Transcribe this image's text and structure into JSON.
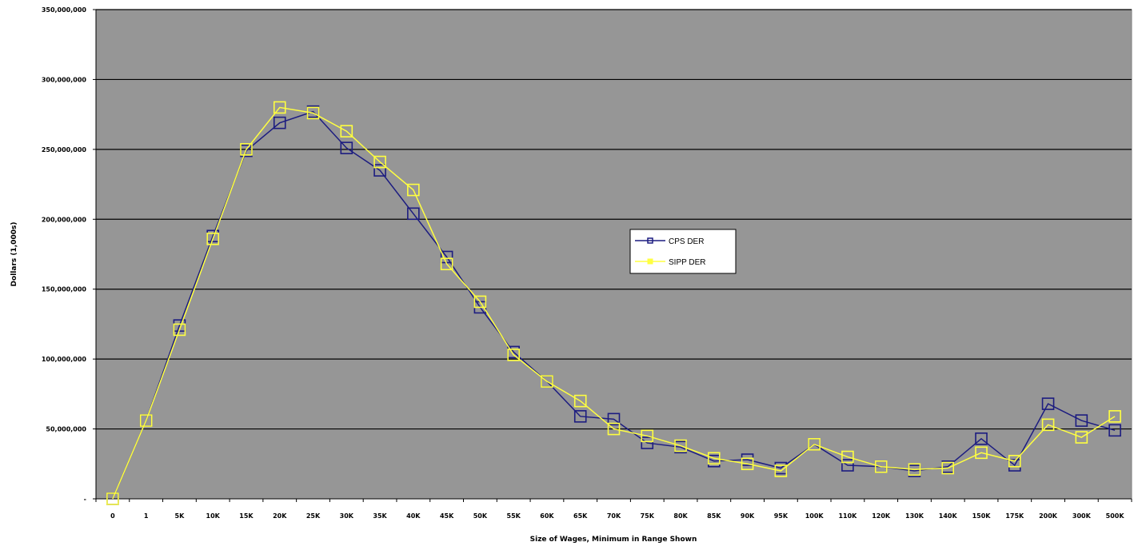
{
  "chart_data": {
    "type": "line",
    "title": "",
    "xlabel": "Size of Wages, Minimum in Range Shown",
    "ylabel": "Dollars (1,000s)",
    "ylim": [
      0,
      350000000
    ],
    "yticks": [
      0,
      50000000,
      100000000,
      150000000,
      200000000,
      250000000,
      300000000,
      350000000
    ],
    "ytick_labels": [
      "-",
      "50,000,000",
      "100,000,000",
      "150,000,000",
      "200,000,000",
      "250,000,000",
      "300,000,000",
      "350,000,000"
    ],
    "grid": true,
    "legend_position": "center-right",
    "categories": [
      "0",
      "1",
      "5K",
      "10K",
      "15K",
      "20K",
      "25K",
      "30K",
      "35K",
      "40K",
      "45K",
      "50K",
      "55K",
      "60K",
      "65K",
      "70K",
      "75K",
      "80K",
      "85K",
      "90K",
      "95K",
      "100K",
      "110K",
      "120K",
      "130K",
      "140K",
      "150K",
      "175K",
      "200K",
      "300K",
      "500K"
    ],
    "series": [
      {
        "name": "CPS DER",
        "color": "#1c1c80",
        "values": [
          0,
          56000000,
          124000000,
          188000000,
          249000000,
          269000000,
          277000000,
          251000000,
          235000000,
          204000000,
          173000000,
          137000000,
          105000000,
          84000000,
          59000000,
          57000000,
          40000000,
          37000000,
          27000000,
          28000000,
          22000000,
          39000000,
          24000000,
          23000000,
          20000000,
          23000000,
          43000000,
          24000000,
          68000000,
          56000000,
          49000000
        ]
      },
      {
        "name": "SIPP DER",
        "color": "#ffff40",
        "values": [
          0,
          56000000,
          121000000,
          186000000,
          250000000,
          280000000,
          276000000,
          263000000,
          241000000,
          221000000,
          168000000,
          141000000,
          103000000,
          84000000,
          70000000,
          50000000,
          45000000,
          38000000,
          29000000,
          25000000,
          20000000,
          39000000,
          30000000,
          23000000,
          21000000,
          22000000,
          33000000,
          27000000,
          53000000,
          44000000,
          59000000
        ]
      }
    ]
  }
}
